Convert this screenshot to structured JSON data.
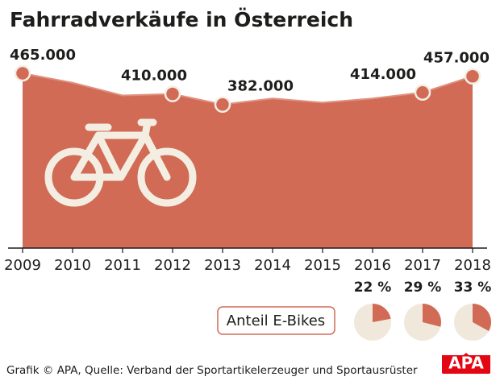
{
  "chart_data": [
    {
      "type": "area",
      "title": "Fahrradverkäufe in Österreich",
      "categories": [
        "2009",
        "2010",
        "2011",
        "2012",
        "2013",
        "2014",
        "2015",
        "2016",
        "2017",
        "2018"
      ],
      "values": [
        465000,
        440000,
        406000,
        410000,
        382000,
        398000,
        387000,
        398000,
        414000,
        457000
      ],
      "value_labels": [
        "465.000",
        null,
        null,
        "410.000",
        "382.000",
        null,
        null,
        null,
        "414.000",
        "457.000"
      ],
      "color": "#d16b56",
      "source": "Grafik © APA, Quelle: Verband der Sportartikelerzeuger und Sportausrüster"
    },
    {
      "type": "pie",
      "title": "Anteil E-Bikes",
      "values": [
        22,
        29,
        33
      ],
      "value_labels": [
        "22 %",
        "29 %",
        "33 %"
      ],
      "color": "#d16b56",
      "background": "#f1e8dc"
    }
  ],
  "logo": "APA"
}
